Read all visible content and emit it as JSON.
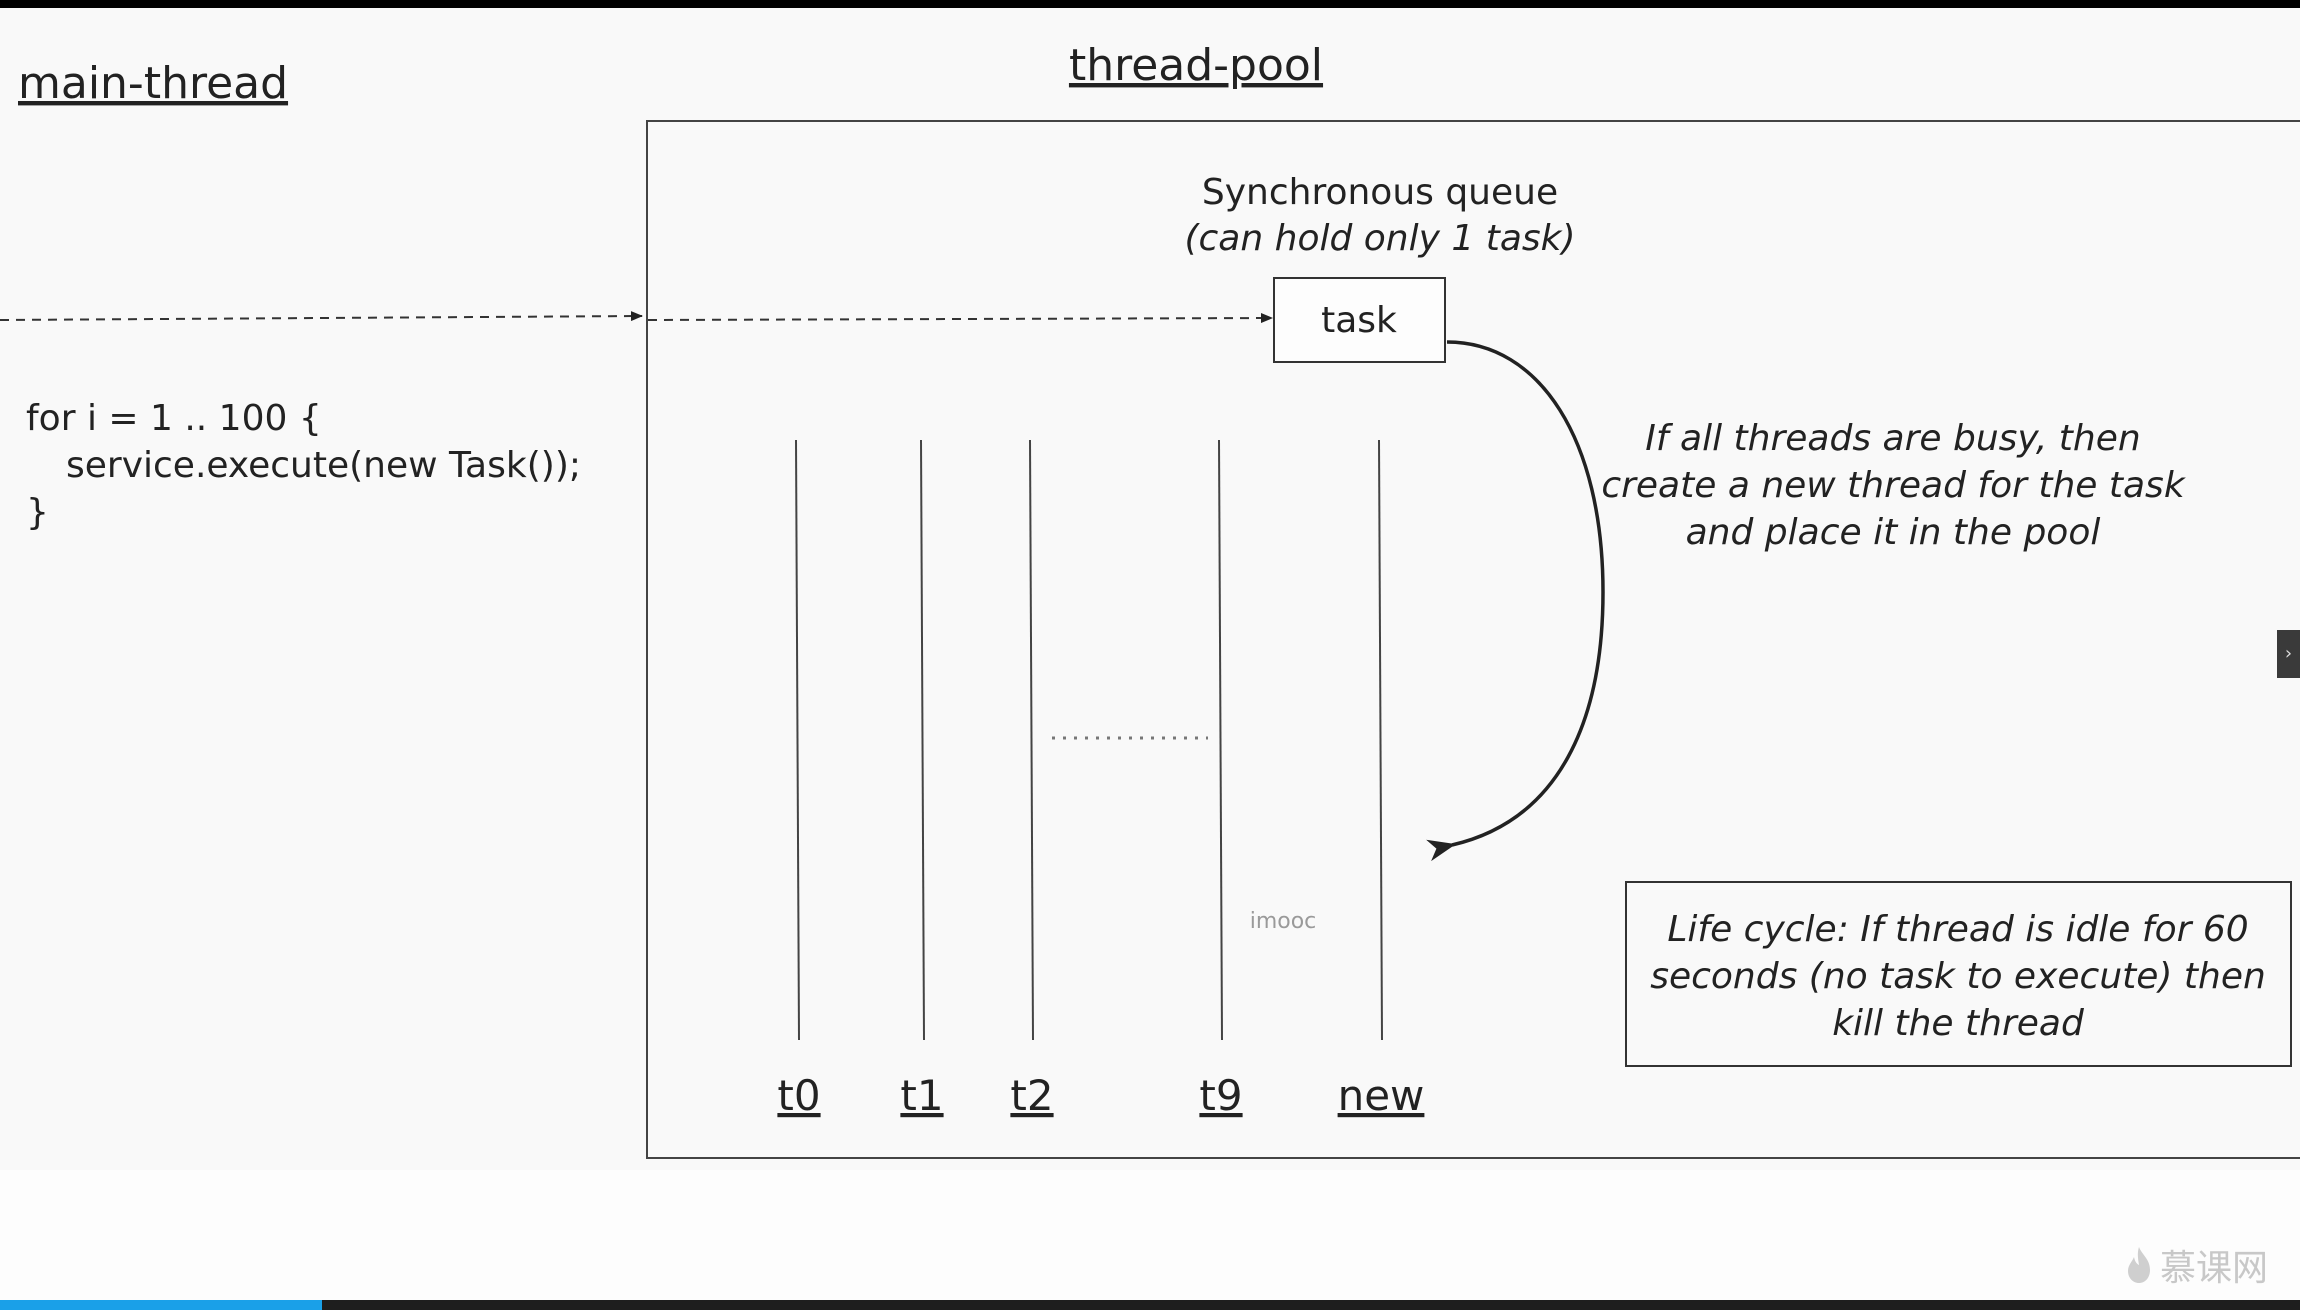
{
  "main_thread": {
    "title": "main-thread",
    "code_lines": [
      "for i = 1 .. 100 {",
      "service.execute(new Task());",
      "}"
    ]
  },
  "thread_pool": {
    "title": "thread-pool",
    "queue_label": "Synchronous queue",
    "queue_note": "(can hold only 1 task)",
    "task_label": "task",
    "threads": [
      "t0",
      "t1",
      "t2",
      "t9",
      "new"
    ],
    "busy_note": [
      "If all threads are busy, then",
      "create a new thread for the task",
      "and place it in the pool"
    ],
    "lifecycle_note": [
      "Life cycle: If thread is idle for 60",
      "seconds (no task to execute) then",
      "kill the thread"
    ]
  },
  "watermark": "imooc",
  "logo": {
    "text": "慕课网",
    "icon": "flame-icon"
  },
  "player": {
    "progress_percent": 14,
    "side_tab_glyph": "›",
    "accent_color": "#1aa0e8"
  }
}
